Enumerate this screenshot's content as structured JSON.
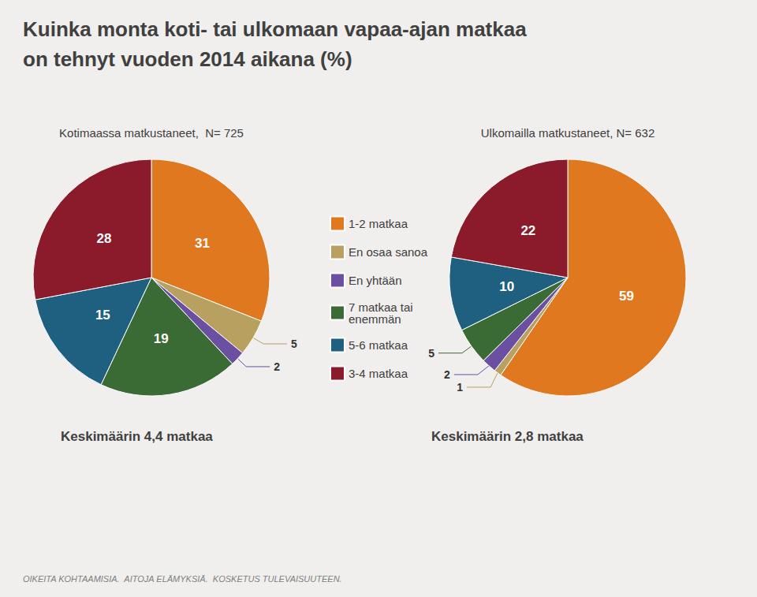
{
  "chart_data": {
    "type": "pie",
    "title": "Kuinka monta koti- tai ulkomaan vapaa-ajan matkaa\non tehnyt vuoden 2014 aikana (%)",
    "categories": [
      "1-2 matkaa",
      "En osaa sanoa",
      "En yhtään",
      "7 matkaa tai\nenemmän",
      "5-6 matkaa",
      "3-4 matkaa"
    ],
    "colors": [
      "#E07820",
      "#B8A060",
      "#6B4FA0",
      "#3A6B35",
      "#1F6080",
      "#8B1A2A"
    ],
    "series": [
      {
        "name": "Kotimaassa matkustaneet,  N= 725",
        "values": [
          31,
          5,
          2,
          19,
          15,
          28
        ],
        "annotation": "Keskimäärin 4,4 matkaa"
      },
      {
        "name": "Ulkomailla matkustaneet, N= 632",
        "values": [
          59,
          1,
          2,
          5,
          10,
          22
        ],
        "annotation": "Keskimäärin 2,8 matkaa"
      }
    ],
    "annotations": [
      "OIKEITA KOHTAAMISIA.  AITOJA ELÄMYKSIÄ.  KOSKETUS TULEVAISUUTEEN."
    ],
    "data_labels": true,
    "legend": "center"
  }
}
